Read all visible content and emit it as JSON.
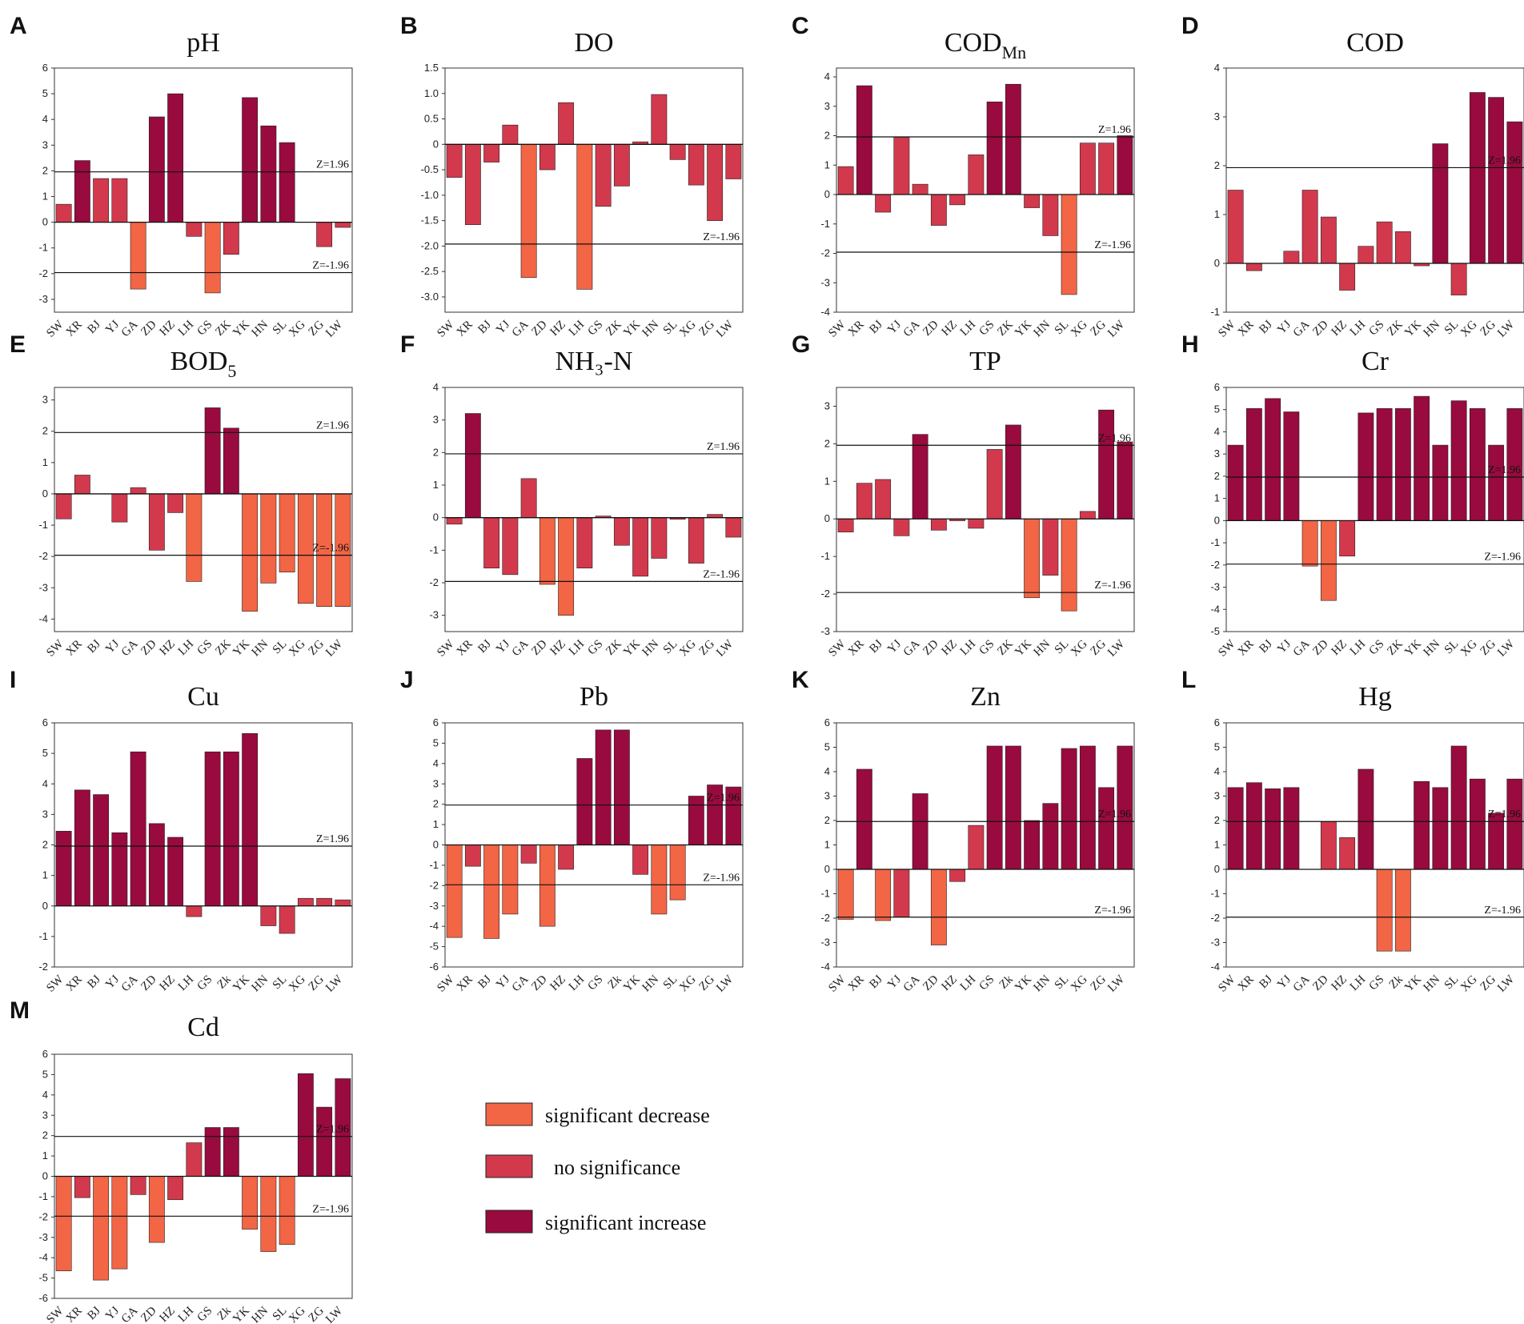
{
  "colors": {
    "significant_decrease": "#f26545",
    "no_significance": "#d2394d",
    "significant_increase": "#990a3e"
  },
  "legend": [
    {
      "key": "significant_decrease",
      "label": "significant decrease"
    },
    {
      "key": "no_significance",
      "label": "no significance"
    },
    {
      "key": "significant_increase",
      "label": "significant increase"
    }
  ],
  "chart_data": [
    {
      "type": "bar",
      "letter": "A",
      "title": "pH",
      "title_sub": "",
      "categories": [
        "SW",
        "XR",
        "BJ",
        "YJ",
        "GA",
        "ZD",
        "HZ",
        "LH",
        "GS",
        "ZK",
        "YK",
        "HN",
        "SL",
        "XG",
        "ZG",
        "LW"
      ],
      "values": [
        0.7,
        2.4,
        1.7,
        1.7,
        -2.6,
        4.1,
        5.0,
        -0.55,
        -2.75,
        -1.25,
        4.85,
        3.75,
        3.1,
        0,
        -0.95,
        -0.2
      ],
      "ylim": [
        -3.5,
        6
      ],
      "yticks": [
        -3,
        -2,
        -1,
        0,
        1,
        2,
        3,
        4,
        5,
        6
      ],
      "zlines": [
        {
          "value": 1.96,
          "label": "Z=1.96"
        },
        {
          "value": -1.96,
          "label": "Z=-1.96"
        }
      ]
    },
    {
      "type": "bar",
      "letter": "B",
      "title": "DO",
      "title_sub": "",
      "categories": [
        "SW",
        "XR",
        "BJ",
        "YJ",
        "GA",
        "ZD",
        "HZ",
        "LH",
        "GS",
        "ZK",
        "YK",
        "HN",
        "SL",
        "XG",
        "ZG",
        "LW"
      ],
      "values": [
        -0.65,
        -1.58,
        -0.35,
        0.38,
        -2.62,
        -0.5,
        0.82,
        -2.85,
        -1.22,
        -0.82,
        0.05,
        0.98,
        -0.3,
        -0.8,
        -1.5,
        -0.68
      ],
      "ylim": [
        -3.3,
        1.5
      ],
      "yticks": [
        -3.0,
        -2.5,
        -2.0,
        -1.5,
        -1.0,
        -0.5,
        0,
        0.5,
        1.0,
        1.5
      ],
      "zlines": [
        {
          "value": -1.96,
          "label": "Z=-1.96"
        }
      ]
    },
    {
      "type": "bar",
      "letter": "C",
      "title": "COD",
      "title_sub": "Mn",
      "categories": [
        "SW",
        "XR",
        "BJ",
        "YJ",
        "GA",
        "ZD",
        "HZ",
        "LH",
        "GS",
        "ZK",
        "YK",
        "HN",
        "SL",
        "XG",
        "ZG",
        "LW"
      ],
      "values": [
        0.95,
        3.7,
        -0.6,
        1.95,
        0.35,
        -1.05,
        -0.35,
        1.35,
        3.15,
        3.75,
        -0.45,
        -1.4,
        -3.4,
        1.75,
        1.75,
        2.0
      ],
      "ylim": [
        -4,
        4.3
      ],
      "yticks": [
        -4,
        -3,
        -2,
        -1,
        0,
        1,
        2,
        3,
        4
      ],
      "zlines": [
        {
          "value": 1.96,
          "label": "Z=1.96"
        },
        {
          "value": -1.96,
          "label": "Z=-1.96"
        }
      ]
    },
    {
      "type": "bar",
      "letter": "D",
      "title": "COD",
      "title_sub": "",
      "categories": [
        "SW",
        "XR",
        "BJ",
        "YJ",
        "GA",
        "ZD",
        "HZ",
        "LH",
        "GS",
        "ZK",
        "YK",
        "HN",
        "SL",
        "XG",
        "ZG",
        "LW"
      ],
      "values": [
        1.5,
        -0.15,
        0,
        0.25,
        1.5,
        0.95,
        -0.55,
        0.35,
        0.85,
        0.65,
        -0.05,
        2.45,
        -0.65,
        3.5,
        3.4,
        2.9
      ],
      "ylim": [
        -1,
        4
      ],
      "yticks": [
        -1,
        0,
        1,
        2,
        3,
        4
      ],
      "zlines": [
        {
          "value": 1.96,
          "label": "Z=1.96"
        }
      ]
    },
    {
      "type": "bar",
      "letter": "E",
      "title": "BOD",
      "title_sub": "5",
      "categories": [
        "SW",
        "XR",
        "BJ",
        "YJ",
        "GA",
        "ZD",
        "HZ",
        "LH",
        "GS",
        "ZK",
        "YK",
        "HN",
        "SL",
        "XG",
        "ZG",
        "LW"
      ],
      "values": [
        -0.8,
        0.6,
        0,
        -0.9,
        0.2,
        -1.8,
        -0.6,
        -2.8,
        2.75,
        2.1,
        -3.75,
        -2.85,
        -2.5,
        -3.5,
        -3.6,
        -3.6
      ],
      "ylim": [
        -4.4,
        3.4
      ],
      "yticks": [
        -4,
        -3,
        -2,
        -1,
        0,
        1,
        2,
        3
      ],
      "zlines": [
        {
          "value": 1.96,
          "label": "Z=1.96"
        },
        {
          "value": -1.96,
          "label": "Z=-1.96"
        }
      ]
    },
    {
      "type": "bar",
      "letter": "F",
      "title": "NH₃-N",
      "title_sub": "",
      "categories": [
        "SW",
        "XR",
        "BJ",
        "YJ",
        "GA",
        "ZD",
        "HZ",
        "LH",
        "GS",
        "ZK",
        "YK",
        "HN",
        "SL",
        "XG",
        "ZG",
        "LW"
      ],
      "values": [
        -0.2,
        3.2,
        -1.55,
        -1.75,
        1.2,
        -2.05,
        -3.0,
        -1.55,
        0.05,
        -0.85,
        -1.8,
        -1.25,
        -0.05,
        -1.4,
        0.1,
        -0.6
      ],
      "ylim": [
        -3.5,
        4
      ],
      "yticks": [
        -3,
        -2,
        -1,
        0,
        1,
        2,
        3,
        4
      ],
      "zlines": [
        {
          "value": 1.96,
          "label": "Z=1.96"
        },
        {
          "value": -1.96,
          "label": "Z=-1.96"
        }
      ]
    },
    {
      "type": "bar",
      "letter": "G",
      "title": "TP",
      "title_sub": "",
      "categories": [
        "SW",
        "XR",
        "BJ",
        "YJ",
        "GA",
        "ZD",
        "HZ",
        "LH",
        "GS",
        "ZK",
        "YK",
        "HN",
        "SL",
        "XG",
        "ZG",
        "LW"
      ],
      "values": [
        -0.35,
        0.95,
        1.05,
        -0.45,
        2.25,
        -0.3,
        -0.05,
        -0.25,
        1.85,
        2.5,
        -2.1,
        -1.5,
        -2.45,
        0.2,
        2.9,
        2.05
      ],
      "ylim": [
        -3,
        3.5
      ],
      "yticks": [
        -3,
        -2,
        -1,
        0,
        1,
        2,
        3
      ],
      "zlines": [
        {
          "value": 1.96,
          "label": "Z=1.96"
        },
        {
          "value": -1.96,
          "label": "Z=-1.96"
        }
      ]
    },
    {
      "type": "bar",
      "letter": "H",
      "title": "Cr",
      "title_sub": "",
      "categories": [
        "SW",
        "XR",
        "BJ",
        "YJ",
        "GA",
        "ZD",
        "HZ",
        "LH",
        "GS",
        "ZK",
        "YK",
        "HN",
        "SL",
        "XG",
        "ZG",
        "LW"
      ],
      "values": [
        3.4,
        5.05,
        5.5,
        4.9,
        -2.05,
        -3.6,
        -1.6,
        4.85,
        5.05,
        5.05,
        5.6,
        3.4,
        5.4,
        5.05,
        3.4,
        5.05
      ],
      "ylim": [
        -5,
        6
      ],
      "yticks": [
        -5,
        -4,
        -3,
        -2,
        -1,
        0,
        1,
        2,
        3,
        4,
        5,
        6
      ],
      "zlines": [
        {
          "value": 1.96,
          "label": "Z=1.96"
        },
        {
          "value": -1.96,
          "label": "Z=-1.96"
        }
      ]
    },
    {
      "type": "bar",
      "letter": "I",
      "title": "Cu",
      "title_sub": "",
      "categories": [
        "SW",
        "XR",
        "BJ",
        "YJ",
        "GA",
        "ZD",
        "HZ",
        "LH",
        "GS",
        "Zk",
        "YK",
        "HN",
        "SL",
        "XG",
        "ZG",
        "LW"
      ],
      "values": [
        2.45,
        3.8,
        3.65,
        2.4,
        5.05,
        2.7,
        2.25,
        -0.35,
        5.05,
        5.05,
        5.65,
        -0.65,
        -0.9,
        0.25,
        0.25,
        0.2
      ],
      "ylim": [
        -2,
        6
      ],
      "yticks": [
        -2,
        -1,
        0,
        1,
        2,
        3,
        4,
        5,
        6
      ],
      "zlines": [
        {
          "value": 1.96,
          "label": "Z=1.96"
        }
      ]
    },
    {
      "type": "bar",
      "letter": "J",
      "title": "Pb",
      "title_sub": "",
      "categories": [
        "SW",
        "XR",
        "BJ",
        "YJ",
        "GA",
        "ZD",
        "HZ",
        "LH",
        "GS",
        "Zk",
        "YK",
        "HN",
        "SL",
        "XG",
        "ZG",
        "LW"
      ],
      "values": [
        -4.55,
        -1.05,
        -4.6,
        -3.4,
        -0.9,
        -4.0,
        -1.2,
        4.25,
        5.65,
        5.65,
        -1.45,
        -3.4,
        -2.7,
        2.4,
        2.95,
        2.85
      ],
      "ylim": [
        -6,
        6
      ],
      "yticks": [
        -6,
        -5,
        -4,
        -3,
        -2,
        -1,
        0,
        1,
        2,
        3,
        4,
        5,
        6
      ],
      "zlines": [
        {
          "value": 1.96,
          "label": "Z=1.96"
        },
        {
          "value": -1.96,
          "label": "Z=-1.96"
        }
      ]
    },
    {
      "type": "bar",
      "letter": "K",
      "title": "Zn",
      "title_sub": "",
      "categories": [
        "SW",
        "XR",
        "BJ",
        "YJ",
        "GA",
        "ZD",
        "HZ",
        "LH",
        "GS",
        "Zk",
        "YK",
        "HN",
        "SL",
        "XG",
        "ZG",
        "LW"
      ],
      "values": [
        -2.05,
        4.1,
        -2.1,
        -1.95,
        3.1,
        -3.1,
        -0.5,
        1.8,
        5.05,
        5.05,
        2.0,
        2.7,
        4.95,
        5.05,
        3.35,
        5.05
      ],
      "ylim": [
        -4,
        6
      ],
      "yticks": [
        -4,
        -3,
        -2,
        -1,
        0,
        1,
        2,
        3,
        4,
        5,
        6
      ],
      "zlines": [
        {
          "value": 1.96,
          "label": "Z=1.96"
        },
        {
          "value": -1.96,
          "label": "Z=-1.96"
        }
      ]
    },
    {
      "type": "bar",
      "letter": "L",
      "title": "Hg",
      "title_sub": "",
      "categories": [
        "SW",
        "XR",
        "BJ",
        "YJ",
        "GA",
        "ZD",
        "HZ",
        "LH",
        "GS",
        "Zk",
        "YK",
        "HN",
        "SL",
        "XG",
        "ZG",
        "LW"
      ],
      "values": [
        3.35,
        3.55,
        3.3,
        3.35,
        0,
        1.95,
        1.3,
        4.1,
        -3.35,
        -3.35,
        3.6,
        3.35,
        5.05,
        3.7,
        2.3,
        3.7
      ],
      "ylim": [
        -4,
        6
      ],
      "yticks": [
        -4,
        -3,
        -2,
        -1,
        0,
        1,
        2,
        3,
        4,
        5,
        6
      ],
      "zlines": [
        {
          "value": 1.96,
          "label": "Z=1.96"
        },
        {
          "value": -1.96,
          "label": "Z=-1.96"
        }
      ]
    },
    {
      "type": "bar",
      "letter": "M",
      "title": "Cd",
      "title_sub": "",
      "categories": [
        "SW",
        "XR",
        "BJ",
        "YJ",
        "GA",
        "ZD",
        "HZ",
        "LH",
        "GS",
        "Zk",
        "YK",
        "HN",
        "SL",
        "XG",
        "ZG",
        "LW"
      ],
      "values": [
        -4.65,
        -1.05,
        -5.1,
        -4.55,
        -0.9,
        -3.25,
        -1.15,
        1.65,
        2.4,
        2.4,
        -2.6,
        -3.7,
        -3.35,
        5.05,
        3.4,
        4.8
      ],
      "ylim": [
        -6,
        6
      ],
      "yticks": [
        -6,
        -5,
        -4,
        -3,
        -2,
        -1,
        0,
        1,
        2,
        3,
        4,
        5,
        6
      ],
      "zlines": [
        {
          "value": 1.96,
          "label": "Z=1.96"
        },
        {
          "value": -1.96,
          "label": "Z=-1.96"
        }
      ]
    }
  ]
}
